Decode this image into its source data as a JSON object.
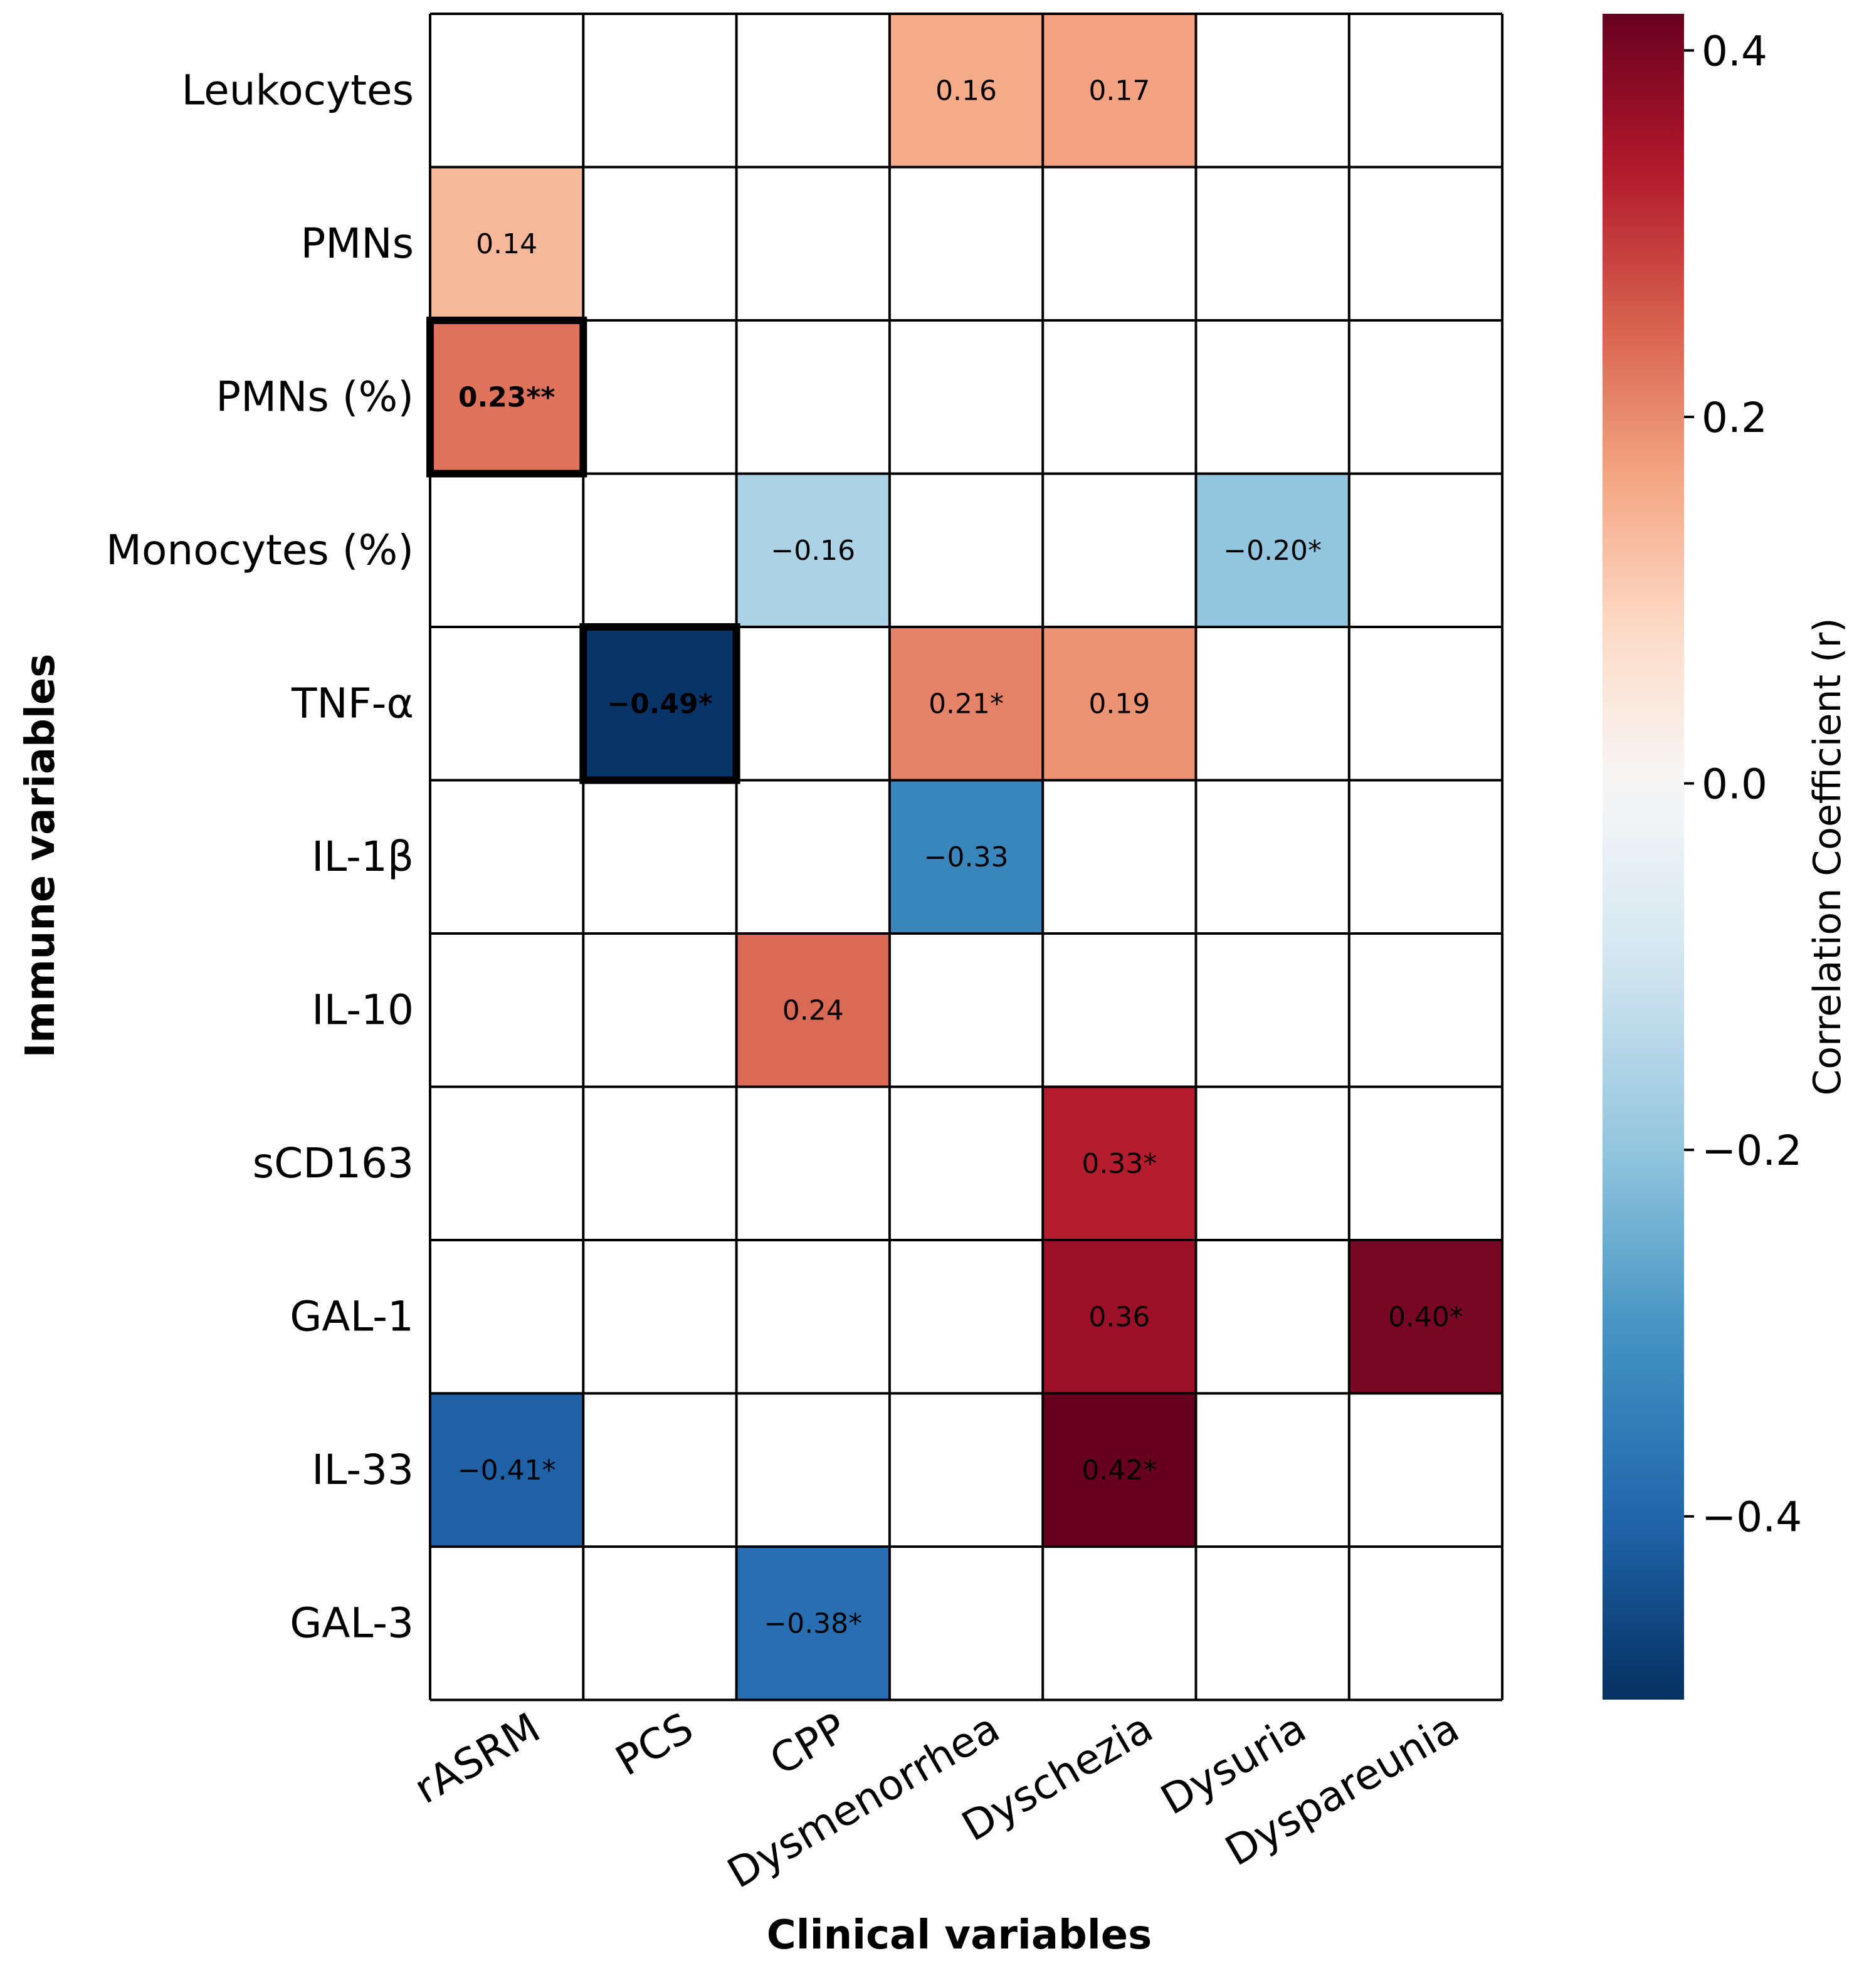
{
  "chart_data": {
    "type": "heatmap",
    "title": "",
    "xlabel": "Clinical variables",
    "ylabel": "Immune variables",
    "x_categories": [
      "rASRM",
      "PCS",
      "CPP",
      "Dysmenorrhea",
      "Dyschezia",
      "Dysuria",
      "Dyspareunia"
    ],
    "y_categories": [
      "Leukocytes",
      "PMNs",
      "PMNs (%)",
      "Monocytes (%)",
      "TNF-α",
      "IL-1β",
      "IL-10",
      "sCD163",
      "GAL-1",
      "IL-33",
      "GAL-3"
    ],
    "values": [
      [
        null,
        null,
        null,
        0.16,
        0.17,
        null,
        null
      ],
      [
        0.14,
        null,
        null,
        null,
        null,
        null,
        null
      ],
      [
        0.23,
        null,
        null,
        null,
        null,
        null,
        null
      ],
      [
        null,
        null,
        -0.16,
        null,
        null,
        -0.2,
        null
      ],
      [
        null,
        -0.49,
        null,
        0.21,
        0.19,
        null,
        null
      ],
      [
        null,
        null,
        null,
        -0.33,
        null,
        null,
        null
      ],
      [
        null,
        null,
        0.24,
        null,
        null,
        null,
        null
      ],
      [
        null,
        null,
        null,
        null,
        0.33,
        null,
        null
      ],
      [
        null,
        null,
        null,
        null,
        0.36,
        null,
        0.4
      ],
      [
        -0.41,
        null,
        null,
        null,
        0.42,
        null,
        null
      ],
      [
        null,
        null,
        -0.38,
        null,
        null,
        null,
        null
      ]
    ],
    "cell_labels": [
      [
        "",
        "",
        "",
        "0.16",
        "0.17",
        "",
        ""
      ],
      [
        "0.14",
        "",
        "",
        "",
        "",
        "",
        ""
      ],
      [
        "0.23**",
        "",
        "",
        "",
        "",
        "",
        ""
      ],
      [
        "",
        "",
        "−0.16",
        "",
        "",
        "−0.20*",
        ""
      ],
      [
        "",
        "−0.49*",
        "",
        "0.21*",
        "0.19",
        "",
        ""
      ],
      [
        "",
        "",
        "",
        "−0.33",
        "",
        "",
        ""
      ],
      [
        "",
        "",
        "0.24",
        "",
        "",
        "",
        ""
      ],
      [
        "",
        "",
        "",
        "",
        "0.33*",
        "",
        ""
      ],
      [
        "",
        "",
        "",
        "",
        "0.36",
        "",
        "0.40*"
      ],
      [
        "−0.41*",
        "",
        "",
        "",
        "0.42*",
        "",
        ""
      ],
      [
        "",
        "",
        "−0.38*",
        "",
        "",
        "",
        ""
      ]
    ],
    "highlighted_cells": [
      [
        2,
        0
      ],
      [
        4,
        1
      ]
    ],
    "colorbar": {
      "label": "Correlation Coefficient (r)",
      "range": [
        -0.5,
        0.42
      ],
      "ticks": [
        0.4,
        0.2,
        0.0,
        -0.2,
        -0.4
      ],
      "tick_labels": [
        "0.4",
        "0.2",
        "0.0",
        "−0.2",
        "−0.4"
      ],
      "colormap": "RdBu_r"
    }
  },
  "colors": {
    "grid": "#000000",
    "background": "#ffffff",
    "colormap_stops": [
      "#053061",
      "#2166ac",
      "#4393c3",
      "#92c5de",
      "#d1e5f0",
      "#f7f7f7",
      "#fddbc7",
      "#f4a582",
      "#d6604d",
      "#b2182b",
      "#67001f"
    ]
  }
}
